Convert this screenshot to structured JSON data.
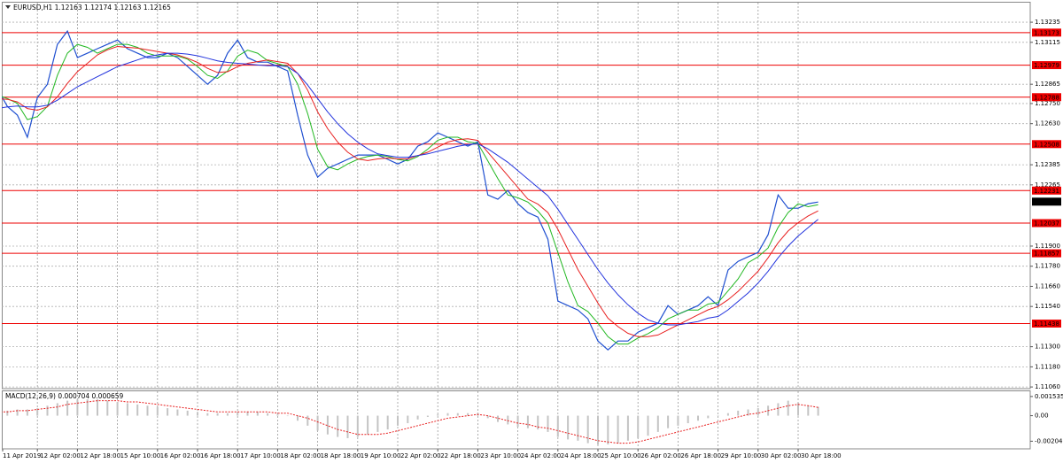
{
  "chart_data": [
    {
      "type": "line",
      "title": "EURUSD,H1  1.12163 1.12174 1.12163 1.12165",
      "categories": [
        "11 Apr 2019",
        null,
        null,
        null,
        "12 Apr 02:00",
        null,
        null,
        null,
        "12 Apr 18:00",
        null,
        null,
        null,
        "15 Apr 10:00",
        null,
        null,
        null,
        "16 Apr 02:00",
        null,
        null,
        null,
        "16 Apr 18:00",
        null,
        null,
        null,
        "17 Apr 10:00",
        null,
        null,
        null,
        "18 Apr 02:00",
        null,
        null,
        null,
        "18 Apr 18:00",
        null,
        null,
        null,
        "19 Apr 10:00",
        null,
        null,
        null,
        "22 Apr 02:00",
        null,
        null,
        null,
        "22 Apr 18:00",
        null,
        null,
        null,
        "23 Apr 10:00",
        null,
        null,
        null,
        "24 Apr 02:00",
        null,
        null,
        null,
        "24 Apr 18:00",
        null,
        null,
        null,
        "25 Apr 10:00",
        null,
        null,
        null,
        "26 Apr 02:00",
        null,
        null,
        null,
        "26 Apr 18:00",
        null,
        null,
        null,
        "29 Apr 10:00",
        null,
        null,
        null,
        "30 Apr 02:00",
        null,
        null,
        null,
        "30 Apr 18:00",
        null,
        null
      ],
      "series": [
        {
          "color": "#1f4fd0",
          "values": [
            1.12839,
            1.12733,
            1.12681,
            1.12549,
            1.12786,
            1.12865,
            1.13103,
            1.13182,
            1.13024,
            1.1305,
            1.13077,
            1.13103,
            1.13129,
            1.13077,
            1.1305,
            1.13024,
            1.13024,
            1.1305,
            1.13024,
            1.12971,
            1.12918,
            1.12865,
            1.12918,
            1.1305,
            1.13129,
            1.13024,
            1.12997,
            1.12997,
            1.12971,
            1.12945,
            1.12681,
            1.12443,
            1.12311,
            1.12364,
            1.1239,
            1.12417,
            1.12443,
            1.12443,
            1.12443,
            1.12417,
            1.1239,
            1.12417,
            1.12496,
            1.12522,
            1.12575,
            1.12549,
            1.12522,
            1.12496,
            1.12522,
            1.12205,
            1.12179,
            1.12232,
            1.12153,
            1.121,
            1.12073,
            1.11941,
            1.11572,
            1.11545,
            1.11519,
            1.11466,
            1.11334,
            1.11281,
            1.11334,
            1.11334,
            1.11387,
            1.11413,
            1.1144,
            1.11545,
            1.11493,
            1.11519,
            1.11545,
            1.11598,
            1.11545,
            1.11757,
            1.11809,
            1.11836,
            1.11862,
            1.11968,
            1.12205,
            1.12126,
            1.12126,
            1.12153,
            1.12163
          ]
        },
        {
          "color": "#22b822",
          "values": [
            1.128,
            1.1278,
            1.12751,
            1.12654,
            1.12672,
            1.12733,
            1.12918,
            1.1305,
            1.13103,
            1.13085,
            1.1305,
            1.13077,
            1.13103,
            1.13103,
            1.13085,
            1.1305,
            1.13033,
            1.13033,
            1.13033,
            1.13015,
            1.12971,
            1.12918,
            1.129,
            1.12944,
            1.13032,
            1.13068,
            1.1305,
            1.13006,
            1.12988,
            1.12971,
            1.12866,
            1.1269,
            1.12478,
            1.12373,
            1.12355,
            1.1239,
            1.12417,
            1.12434,
            1.12443,
            1.12434,
            1.12417,
            1.12408,
            1.12434,
            1.12478,
            1.12531,
            1.12549,
            1.12549,
            1.12522,
            1.12513,
            1.12408,
            1.12302,
            1.12205,
            1.12188,
            1.12162,
            1.12109,
            1.12038,
            1.11862,
            1.11686,
            1.11545,
            1.1151,
            1.1144,
            1.1136,
            1.11316,
            1.11316,
            1.11352,
            1.11378,
            1.11413,
            1.11466,
            1.11493,
            1.11519,
            1.11519,
            1.11554,
            1.11563,
            1.11633,
            1.11704,
            1.11801,
            1.11836,
            1.11889,
            1.12012,
            1.121,
            1.12152,
            1.12135,
            1.12147
          ]
        },
        {
          "color": "#e82020",
          "values": [
            1.1278,
            1.12775,
            1.1276,
            1.1272,
            1.1271,
            1.1273,
            1.1279,
            1.1287,
            1.1294,
            1.1299,
            1.1304,
            1.1307,
            1.1309,
            1.13085,
            1.1308,
            1.1307,
            1.1306,
            1.1305,
            1.1304,
            1.1302,
            1.12995,
            1.1296,
            1.12935,
            1.1294,
            1.1297,
            1.1299,
            1.13,
            1.1301,
            1.13,
            1.1299,
            1.1293,
            1.1283,
            1.127,
            1.126,
            1.1252,
            1.1246,
            1.1242,
            1.1241,
            1.1242,
            1.12425,
            1.1242,
            1.1242,
            1.1244,
            1.1246,
            1.1249,
            1.1252,
            1.12535,
            1.1254,
            1.1253,
            1.1246,
            1.1239,
            1.1232,
            1.1225,
            1.1218,
            1.1215,
            1.121,
            1.12,
            1.1188,
            1.1176,
            1.1166,
            1.1156,
            1.1147,
            1.1142,
            1.1138,
            1.1136,
            1.1136,
            1.1137,
            1.114,
            1.1143,
            1.1146,
            1.1149,
            1.1152,
            1.1154,
            1.1158,
            1.1163,
            1.1169,
            1.1175,
            1.1183,
            1.1192,
            1.1199,
            1.1204,
            1.1208,
            1.1211
          ]
        },
        {
          "color": "#2233dd",
          "values": [
            1.1272,
            1.1273,
            1.12735,
            1.1273,
            1.1273,
            1.1274,
            1.1277,
            1.1281,
            1.1285,
            1.1288,
            1.1291,
            1.1294,
            1.1297,
            1.1299,
            1.1301,
            1.1303,
            1.1304,
            1.1305,
            1.1305,
            1.13045,
            1.13035,
            1.1302,
            1.13005,
            1.12995,
            1.1299,
            1.12985,
            1.1298,
            1.12975,
            1.12975,
            1.1297,
            1.1293,
            1.1286,
            1.1278,
            1.127,
            1.1263,
            1.1257,
            1.1252,
            1.1248,
            1.1245,
            1.1244,
            1.1243,
            1.1243,
            1.1244,
            1.1245,
            1.12465,
            1.1248,
            1.12495,
            1.12505,
            1.1251,
            1.1248,
            1.1244,
            1.124,
            1.1235,
            1.123,
            1.1225,
            1.122,
            1.1212,
            1.1203,
            1.1194,
            1.1185,
            1.1176,
            1.1168,
            1.1161,
            1.1155,
            1.115,
            1.1146,
            1.1144,
            1.1143,
            1.1143,
            1.1144,
            1.1145,
            1.1147,
            1.1148,
            1.1152,
            1.1157,
            1.1162,
            1.1168,
            1.1175,
            1.1183,
            1.119,
            1.1196,
            1.1201,
            1.1206
          ]
        }
      ],
      "ylim": [
        1.1105,
        1.13341
      ],
      "yticks": [
        1.13235,
        1.13115,
        1.12865,
        {
          "value": 1.1275,
          "label": "1.12750"
        },
        {
          "value": 1.1263,
          "label": "1.12630"
        },
        1.12385,
        1.12265,
        {
          "value": 1.119,
          "label": "1.11900"
        },
        {
          "value": 1.1178,
          "label": "1.11780"
        },
        {
          "value": 1.1166,
          "label": "1.11660"
        },
        {
          "value": 1.1154,
          "label": "1.11540"
        },
        {
          "value": 1.113,
          "label": "1.11300"
        },
        {
          "value": 1.1118,
          "label": "1.11180"
        },
        {
          "value": 1.1106,
          "label": "1.11060"
        }
      ],
      "levels": [
        1.13173,
        1.12979,
        1.12788,
        1.12508,
        1.12231,
        1.12037,
        1.11857,
        1.11438
      ],
      "level_color": "#ee0000",
      "current_price": 1.12165,
      "grid": true
    },
    {
      "type": "bar",
      "title": "MACD(12,26,9) 0.000704 0.000659",
      "series": [
        {
          "color": "#c4c4c4",
          "values": [
            0.0002,
            0.0004,
            0.0005,
            0.0005,
            0.0006,
            0.0008,
            0.001,
            0.0012,
            0.0013,
            0.0013,
            0.0013,
            0.0012,
            0.0011,
            0.001,
            0.0009,
            0.0008,
            0.0007,
            0.0006,
            0.0005,
            0.0004,
            0.0003,
            0.0002,
            0.0002,
            0.0002,
            0.0003,
            0.0003,
            0.0003,
            0.0002,
            0.0001,
            0,
            -0.0004,
            -0.0008,
            -0.0012,
            -0.0015,
            -0.0017,
            -0.0018,
            -0.0017,
            -0.0015,
            -0.0013,
            -0.0011,
            -0.0008,
            -0.0006,
            -0.0003,
            -0.0001,
            0.0001,
            0.0002,
            0.0002,
            0.0002,
            0.0002,
            -0.0002,
            -0.0005,
            -0.0007,
            -0.0009,
            -0.001,
            -0.0011,
            -0.0013,
            -0.0017,
            -0.0019,
            -0.002,
            -0.0022,
            -0.0023,
            -0.0023,
            -0.0022,
            -0.002,
            -0.0018,
            -0.0016,
            -0.0013,
            -0.001,
            -0.0008,
            -0.0006,
            -0.0004,
            -0.0002,
            0,
            0.0002,
            0.0004,
            0.0005,
            0.0006,
            0.0008,
            0.001,
            0.0012,
            0.001,
            0.0008,
            0.000704
          ]
        },
        {
          "type": "line",
          "color": "#e82020",
          "values": [
            0.0003,
            0.0003,
            0.0004,
            0.0004,
            0.0005,
            0.0006,
            0.0007,
            0.0009,
            0.001,
            0.0011,
            0.0012,
            0.0012,
            0.0012,
            0.0011,
            0.0011,
            0.001,
            0.0009,
            0.0008,
            0.0007,
            0.0006,
            0.0005,
            0.0004,
            0.0003,
            0.0003,
            0.0003,
            0.0003,
            0.0003,
            0.0003,
            0.0002,
            0.0002,
            0,
            -0.0002,
            -0.0005,
            -0.0008,
            -0.0011,
            -0.0013,
            -0.0015,
            -0.0015,
            -0.0015,
            -0.0014,
            -0.0012,
            -0.001,
            -0.0008,
            -0.0006,
            -0.0004,
            -0.0002,
            -0.0001,
            0,
            0.0001,
            0,
            -0.0002,
            -0.0004,
            -0.0006,
            -0.0007,
            -0.0009,
            -0.001,
            -0.0012,
            -0.0014,
            -0.0016,
            -0.0018,
            -0.002,
            -0.0021,
            -0.0022,
            -0.0022,
            -0.0021,
            -0.0019,
            -0.0017,
            -0.0015,
            -0.0013,
            -0.0011,
            -0.0009,
            -0.0007,
            -0.0005,
            -0.0003,
            -0.0001,
            0.0001,
            0.0002,
            0.0004,
            0.0006,
            0.0008,
            0.0009,
            0.0008,
            0.000659
          ]
        }
      ],
      "ylim": [
        -0.00251,
        0.00188
      ],
      "yticks": [
        0.001535,
        {
          "value": 0,
          "label": "0.00"
        },
        -0.002041
      ]
    }
  ]
}
